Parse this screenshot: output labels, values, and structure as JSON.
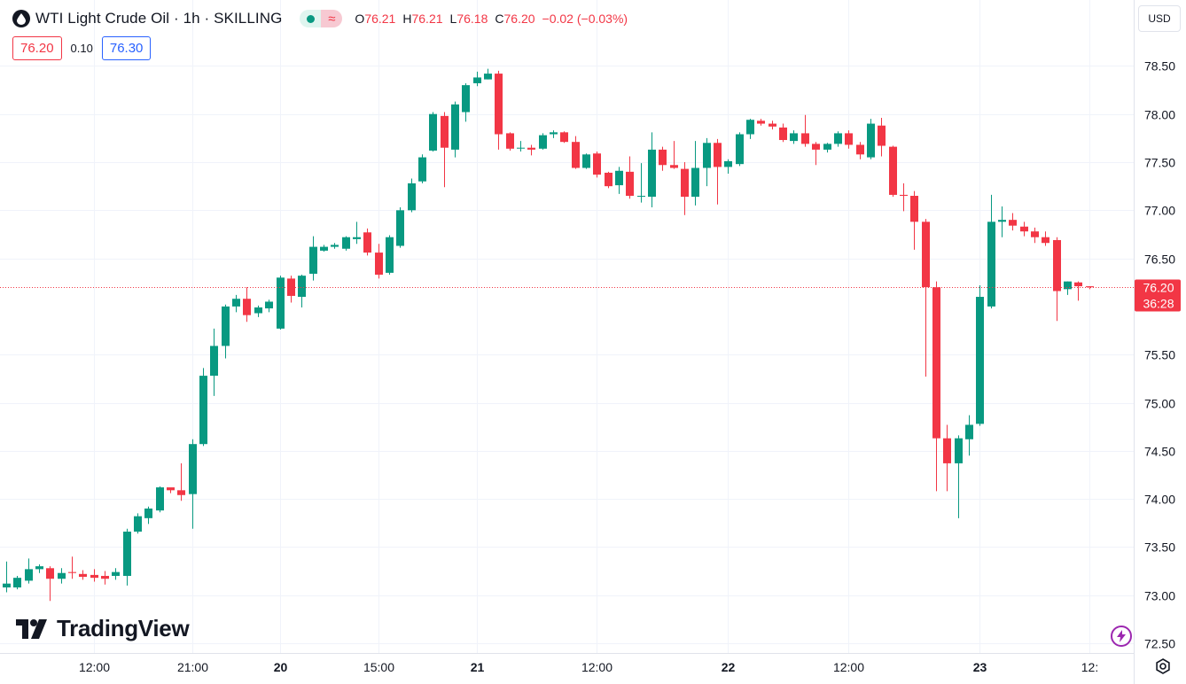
{
  "header": {
    "symbol_title": "WTI Light Crude Oil · 1h · SKILLING",
    "ohlc": {
      "open_label": "O",
      "open": "76.21",
      "high_label": "H",
      "high": "76.21",
      "low_label": "L",
      "low": "76.18",
      "close_label": "C",
      "close": "76.20",
      "change": "−0.02 (−0.03%)"
    },
    "bid": "76.20",
    "spread": "0.10",
    "ask": "76.30",
    "currency": "USD"
  },
  "brand": {
    "name": "TradingView"
  },
  "price_label": {
    "price": "76.20",
    "countdown": "36:28"
  },
  "colors": {
    "up": "#089981",
    "down": "#f23645",
    "grid": "#f0f3fa"
  },
  "chart_data": {
    "type": "candlestick",
    "title": "WTI Light Crude Oil · 1h · SKILLING",
    "y_range": [
      72.4,
      78.8
    ],
    "y_ticks": [
      "78.50",
      "78.00",
      "77.50",
      "77.00",
      "76.50",
      "75.50",
      "75.00",
      "74.50",
      "74.00",
      "73.50",
      "73.00",
      "72.50"
    ],
    "x_ticks": [
      {
        "label": "12:00",
        "bold": false,
        "bar": 8
      },
      {
        "label": "21:00",
        "bold": false,
        "bar": 17
      },
      {
        "label": "20",
        "bold": true,
        "bar": 25
      },
      {
        "label": "15:00",
        "bold": false,
        "bar": 34
      },
      {
        "label": "21",
        "bold": true,
        "bar": 43
      },
      {
        "label": "12:00",
        "bold": false,
        "bar": 54
      },
      {
        "label": "22",
        "bold": true,
        "bar": 66
      },
      {
        "label": "12:00",
        "bold": false,
        "bar": 77
      },
      {
        "label": "23",
        "bold": true,
        "bar": 89
      },
      {
        "label": "12:",
        "bold": false,
        "bar": 99
      }
    ],
    "last_price": 76.2,
    "candles": [
      [
        73.08,
        73.12,
        73.03,
        73.35
      ],
      [
        73.08,
        73.18,
        73.06,
        73.2
      ],
      [
        73.15,
        73.27,
        73.12,
        73.38
      ],
      [
        73.27,
        73.3,
        73.23,
        73.32
      ],
      [
        73.28,
        73.17,
        72.94,
        73.3
      ],
      [
        73.17,
        73.23,
        73.12,
        73.28
      ],
      [
        73.24,
        73.23,
        73.17,
        73.4
      ],
      [
        73.22,
        73.19,
        73.16,
        73.26
      ],
      [
        73.21,
        73.18,
        73.14,
        73.27
      ],
      [
        73.2,
        73.17,
        73.11,
        73.25
      ],
      [
        73.2,
        73.24,
        73.16,
        73.28
      ],
      [
        73.2,
        73.66,
        73.1,
        73.69
      ],
      [
        73.66,
        73.82,
        73.64,
        73.85
      ],
      [
        73.8,
        73.9,
        73.74,
        73.92
      ],
      [
        73.88,
        74.12,
        73.86,
        74.13
      ],
      [
        74.12,
        74.09,
        74.06,
        74.11
      ],
      [
        74.09,
        74.04,
        73.98,
        74.37
      ],
      [
        74.05,
        74.57,
        73.69,
        74.62
      ],
      [
        74.57,
        75.28,
        74.55,
        75.36
      ],
      [
        75.28,
        75.59,
        75.07,
        75.77
      ],
      [
        75.59,
        76.0,
        75.46,
        76.02
      ],
      [
        76.0,
        76.08,
        75.94,
        76.12
      ],
      [
        76.08,
        75.91,
        75.84,
        76.2
      ],
      [
        75.93,
        75.99,
        75.89,
        76.01
      ],
      [
        75.98,
        76.05,
        75.94,
        76.07
      ],
      [
        75.77,
        76.3,
        75.76,
        76.32
      ],
      [
        76.29,
        76.11,
        76.04,
        76.32
      ],
      [
        76.1,
        76.32,
        75.99,
        76.33
      ],
      [
        76.34,
        76.62,
        76.27,
        76.73
      ],
      [
        76.58,
        76.62,
        76.57,
        76.64
      ],
      [
        76.62,
        76.64,
        76.6,
        76.66
      ],
      [
        76.6,
        76.72,
        76.58,
        76.73
      ],
      [
        76.7,
        76.72,
        76.65,
        76.88
      ],
      [
        76.77,
        76.56,
        76.53,
        76.81
      ],
      [
        76.56,
        76.33,
        76.29,
        76.65
      ],
      [
        76.35,
        76.72,
        76.33,
        76.74
      ],
      [
        76.63,
        77.0,
        76.61,
        77.03
      ],
      [
        77.0,
        77.28,
        76.98,
        77.33
      ],
      [
        77.3,
        77.55,
        77.28,
        77.58
      ],
      [
        77.62,
        78.0,
        77.61,
        78.02
      ],
      [
        77.98,
        77.65,
        77.24,
        78.02
      ],
      [
        77.63,
        78.1,
        77.55,
        78.13
      ],
      [
        78.02,
        78.3,
        77.92,
        78.32
      ],
      [
        78.32,
        78.38,
        78.29,
        78.44
      ],
      [
        78.36,
        78.42,
        78.36,
        78.47
      ],
      [
        78.42,
        77.79,
        77.63,
        78.45
      ],
      [
        77.8,
        77.64,
        77.62,
        77.81
      ],
      [
        77.65,
        77.65,
        77.61,
        77.72
      ],
      [
        77.65,
        77.63,
        77.57,
        77.68
      ],
      [
        77.64,
        77.78,
        77.63,
        77.8
      ],
      [
        77.79,
        77.81,
        77.75,
        77.83
      ],
      [
        77.81,
        77.71,
        77.7,
        77.82
      ],
      [
        77.71,
        77.44,
        77.43,
        77.77
      ],
      [
        77.44,
        77.58,
        77.43,
        77.59
      ],
      [
        77.59,
        77.37,
        77.34,
        77.61
      ],
      [
        77.39,
        77.25,
        77.23,
        77.4
      ],
      [
        77.26,
        77.41,
        77.17,
        77.45
      ],
      [
        77.4,
        77.15,
        77.12,
        77.56
      ],
      [
        77.15,
        77.15,
        77.08,
        77.49
      ],
      [
        77.14,
        77.63,
        77.03,
        77.81
      ],
      [
        77.63,
        77.47,
        77.41,
        77.66
      ],
      [
        77.47,
        77.44,
        77.43,
        77.72
      ],
      [
        77.43,
        77.14,
        76.95,
        77.5
      ],
      [
        77.14,
        77.44,
        77.05,
        77.72
      ],
      [
        77.44,
        77.7,
        77.25,
        77.75
      ],
      [
        77.7,
        77.45,
        77.06,
        77.74
      ],
      [
        77.45,
        77.51,
        77.38,
        77.53
      ],
      [
        77.48,
        77.79,
        77.46,
        77.81
      ],
      [
        77.79,
        77.94,
        77.74,
        77.95
      ],
      [
        77.93,
        77.9,
        77.88,
        77.95
      ],
      [
        77.9,
        77.87,
        77.84,
        77.93
      ],
      [
        77.86,
        77.73,
        77.71,
        77.9
      ],
      [
        77.72,
        77.8,
        77.69,
        77.83
      ],
      [
        77.8,
        77.69,
        77.66,
        77.99
      ],
      [
        77.69,
        77.63,
        77.47,
        77.71
      ],
      [
        77.63,
        77.69,
        77.6,
        77.7
      ],
      [
        77.69,
        77.8,
        77.66,
        77.82
      ],
      [
        77.8,
        77.68,
        77.64,
        77.83
      ],
      [
        77.68,
        77.58,
        77.53,
        77.71
      ],
      [
        77.55,
        77.9,
        77.53,
        77.95
      ],
      [
        77.88,
        77.67,
        77.56,
        77.96
      ],
      [
        77.66,
        77.16,
        77.14,
        77.67
      ],
      [
        77.16,
        77.15,
        76.99,
        77.28
      ],
      [
        77.15,
        76.88,
        76.59,
        77.2
      ],
      [
        76.88,
        76.2,
        75.27,
        76.91
      ],
      [
        76.2,
        74.63,
        74.08,
        76.26
      ],
      [
        74.63,
        74.37,
        74.08,
        74.77
      ],
      [
        74.37,
        74.63,
        73.8,
        74.66
      ],
      [
        74.62,
        74.77,
        74.45,
        74.87
      ],
      [
        74.78,
        76.1,
        74.76,
        76.22
      ],
      [
        76.0,
        76.88,
        75.98,
        77.16
      ],
      [
        76.88,
        76.9,
        76.72,
        77.04
      ],
      [
        76.9,
        76.84,
        76.79,
        76.97
      ],
      [
        76.83,
        76.78,
        76.73,
        76.88
      ],
      [
        76.78,
        76.72,
        76.66,
        76.82
      ],
      [
        76.72,
        76.66,
        76.63,
        76.78
      ],
      [
        76.69,
        76.16,
        75.85,
        76.72
      ],
      [
        76.18,
        76.26,
        76.12,
        76.26
      ],
      [
        76.25,
        76.21,
        76.06,
        76.26
      ],
      [
        76.21,
        76.2,
        76.18,
        76.21
      ]
    ]
  }
}
